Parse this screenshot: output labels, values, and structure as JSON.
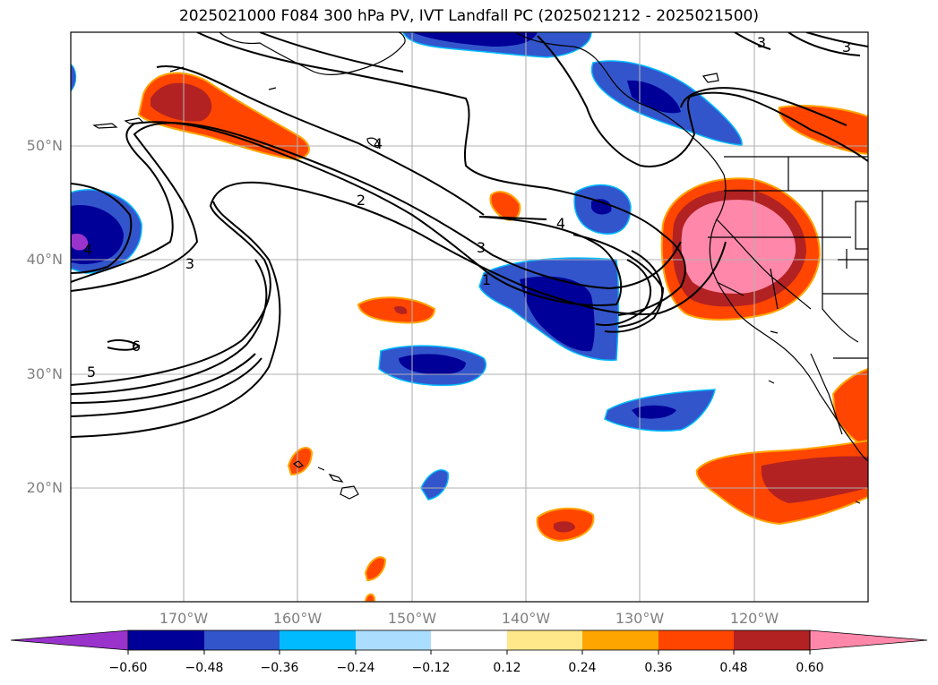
{
  "title": "2025021000 F084 300 hPa PV, IVT Landfall PC (2025021212 - 2025021500)",
  "map": {
    "lat_labels": [
      "50°N",
      "40°N",
      "30°N",
      "20°N"
    ],
    "lon_labels": [
      "170°W",
      "160°W",
      "150°W",
      "140°W",
      "130°W",
      "120°W"
    ],
    "contour_labels": [
      "2",
      "3",
      "4",
      "3",
      "1",
      "3",
      "5",
      "6",
      "4",
      "4",
      "3"
    ]
  },
  "colorbar": {
    "ticks": [
      "−0.60",
      "−0.48",
      "−0.36",
      "−0.24",
      "−0.12",
      "0.12",
      "0.24",
      "0.36",
      "0.48",
      "0.60"
    ],
    "colors": [
      "#9933cc",
      "#000099",
      "#3355cc",
      "#00bbff",
      "#aaddff",
      "#ffffff",
      "#ffe88a",
      "#ffa500",
      "#ff4500",
      "#b22222",
      "#ff88aa"
    ]
  }
}
